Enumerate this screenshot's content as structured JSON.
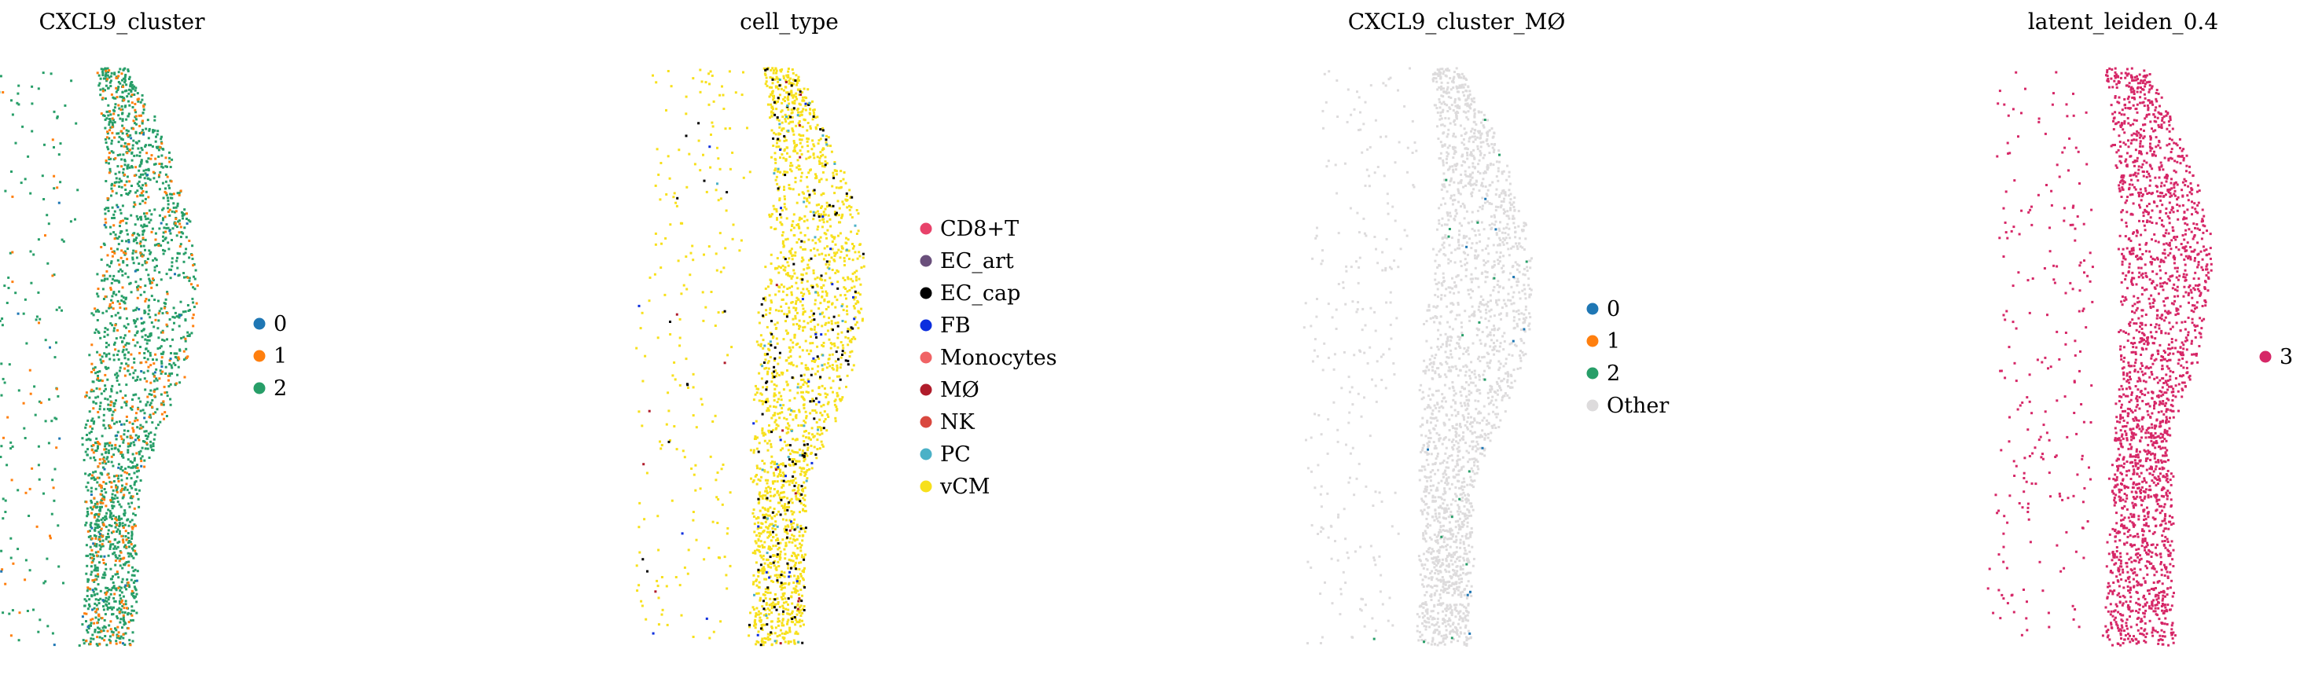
{
  "chart_data": [
    {
      "type": "scatter",
      "title": "CXCL9_cluster",
      "xlabel": "",
      "ylabel": "",
      "grid": false,
      "axes_visible": false,
      "legend": {
        "placement": "right",
        "entries": [
          {
            "label": "0",
            "color": "#1f77b4"
          },
          {
            "label": "1",
            "color": "#ff7f0e"
          },
          {
            "label": "2",
            "color": "#279e68"
          }
        ]
      },
      "series": [
        {
          "name": "0",
          "color": "#1f77b4",
          "share": 0.02
        },
        {
          "name": "1",
          "color": "#ff7f0e",
          "share": 0.2
        },
        {
          "name": "2",
          "color": "#279e68",
          "share": 0.78
        }
      ]
    },
    {
      "type": "scatter",
      "title": "cell_type",
      "xlabel": "",
      "ylabel": "",
      "grid": false,
      "axes_visible": false,
      "legend": {
        "placement": "right",
        "entries": [
          {
            "label": "CD8+T",
            "color": "#e8426a"
          },
          {
            "label": "EC_art",
            "color": "#6a4f7b"
          },
          {
            "label": "EC_cap",
            "color": "#000000"
          },
          {
            "label": "FB",
            "color": "#0c2ede"
          },
          {
            "label": "Monocytes",
            "color": "#f06365"
          },
          {
            "label": "MØ",
            "color": "#b01c2b"
          },
          {
            "label": "NK",
            "color": "#d9483f"
          },
          {
            "label": "PC",
            "color": "#4bb1c7"
          },
          {
            "label": "vCM",
            "color": "#f7e01c"
          }
        ]
      },
      "series": [
        {
          "name": "vCM",
          "color": "#f7e01c",
          "share": 0.9
        },
        {
          "name": "EC_cap",
          "color": "#000000",
          "share": 0.06
        },
        {
          "name": "PC",
          "color": "#4bb1c7",
          "share": 0.02
        },
        {
          "name": "FB",
          "color": "#0c2ede",
          "share": 0.01
        },
        {
          "name": "MØ",
          "color": "#b01c2b",
          "share": 0.01
        }
      ]
    },
    {
      "type": "scatter",
      "title": "CXCL9_cluster_MØ",
      "xlabel": "",
      "ylabel": "",
      "grid": false,
      "axes_visible": false,
      "legend": {
        "placement": "right",
        "entries": [
          {
            "label": "0",
            "color": "#1f77b4"
          },
          {
            "label": "1",
            "color": "#ff7f0e"
          },
          {
            "label": "2",
            "color": "#279e68"
          },
          {
            "label": "Other",
            "color": "#dddbdc"
          }
        ]
      },
      "series": [
        {
          "name": "Other",
          "color": "#dddbdc",
          "share": 0.985
        },
        {
          "name": "2",
          "color": "#279e68",
          "share": 0.01
        },
        {
          "name": "0",
          "color": "#1f77b4",
          "share": 0.005
        }
      ]
    },
    {
      "type": "scatter",
      "title": "latent_leiden_0.4",
      "xlabel": "",
      "ylabel": "",
      "grid": false,
      "axes_visible": false,
      "legend": {
        "placement": "right",
        "entries": [
          {
            "label": "3",
            "color": "#d62767"
          }
        ]
      },
      "series": [
        {
          "name": "3",
          "color": "#d62767",
          "share": 1.0
        }
      ]
    }
  ]
}
